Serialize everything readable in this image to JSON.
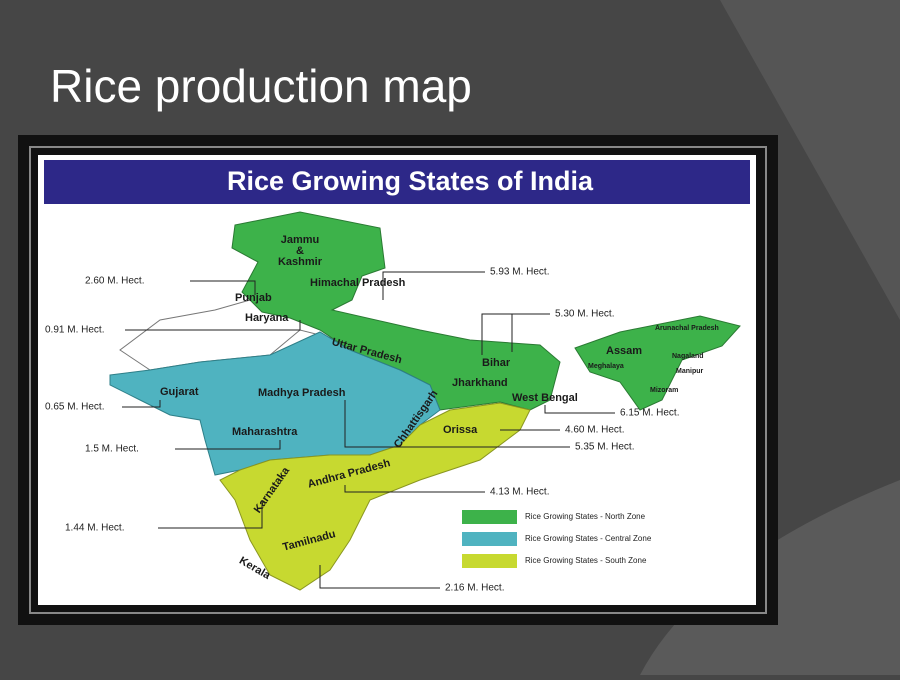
{
  "slide": {
    "title": "Rice production map"
  },
  "map": {
    "title": "Rice Growing States of India",
    "states": [
      "Jammu",
      "&",
      "Kashmir",
      "Himachal Pradesh",
      "Punjab",
      "Haryana",
      "Uttar Pradesh",
      "Bihar",
      "Jharkhand",
      "West Bengal",
      "Assam",
      "Arunachal Pradesh",
      "Nagaland",
      "Manipur",
      "Meghalaya",
      "Mizoram",
      "Gujarat",
      "Madhya Pradesh",
      "Chhattisgarh",
      "Maharashtra",
      "Orissa",
      "Andhra Pradesh",
      "Karnataka",
      "Tamilnadu",
      "Kerala"
    ],
    "callouts": [
      "2.60 M. Hect.",
      "5.93 M. Hect.",
      "5.30 M. Hect.",
      "0.91 M. Hect.",
      "0.65 M. Hect.",
      "6.15 M. Hect.",
      "4.60 M. Hect.",
      "1.5 M. Hect.",
      "5.35 M. Hect.",
      "4.13 M. Hect.",
      "1.44 M. Hect.",
      "2.16 M. Hect."
    ],
    "legend": [
      "Rice Growing States - North Zone",
      "Rice Growing States - Central Zone",
      "Rice Growing States - South Zone"
    ]
  }
}
